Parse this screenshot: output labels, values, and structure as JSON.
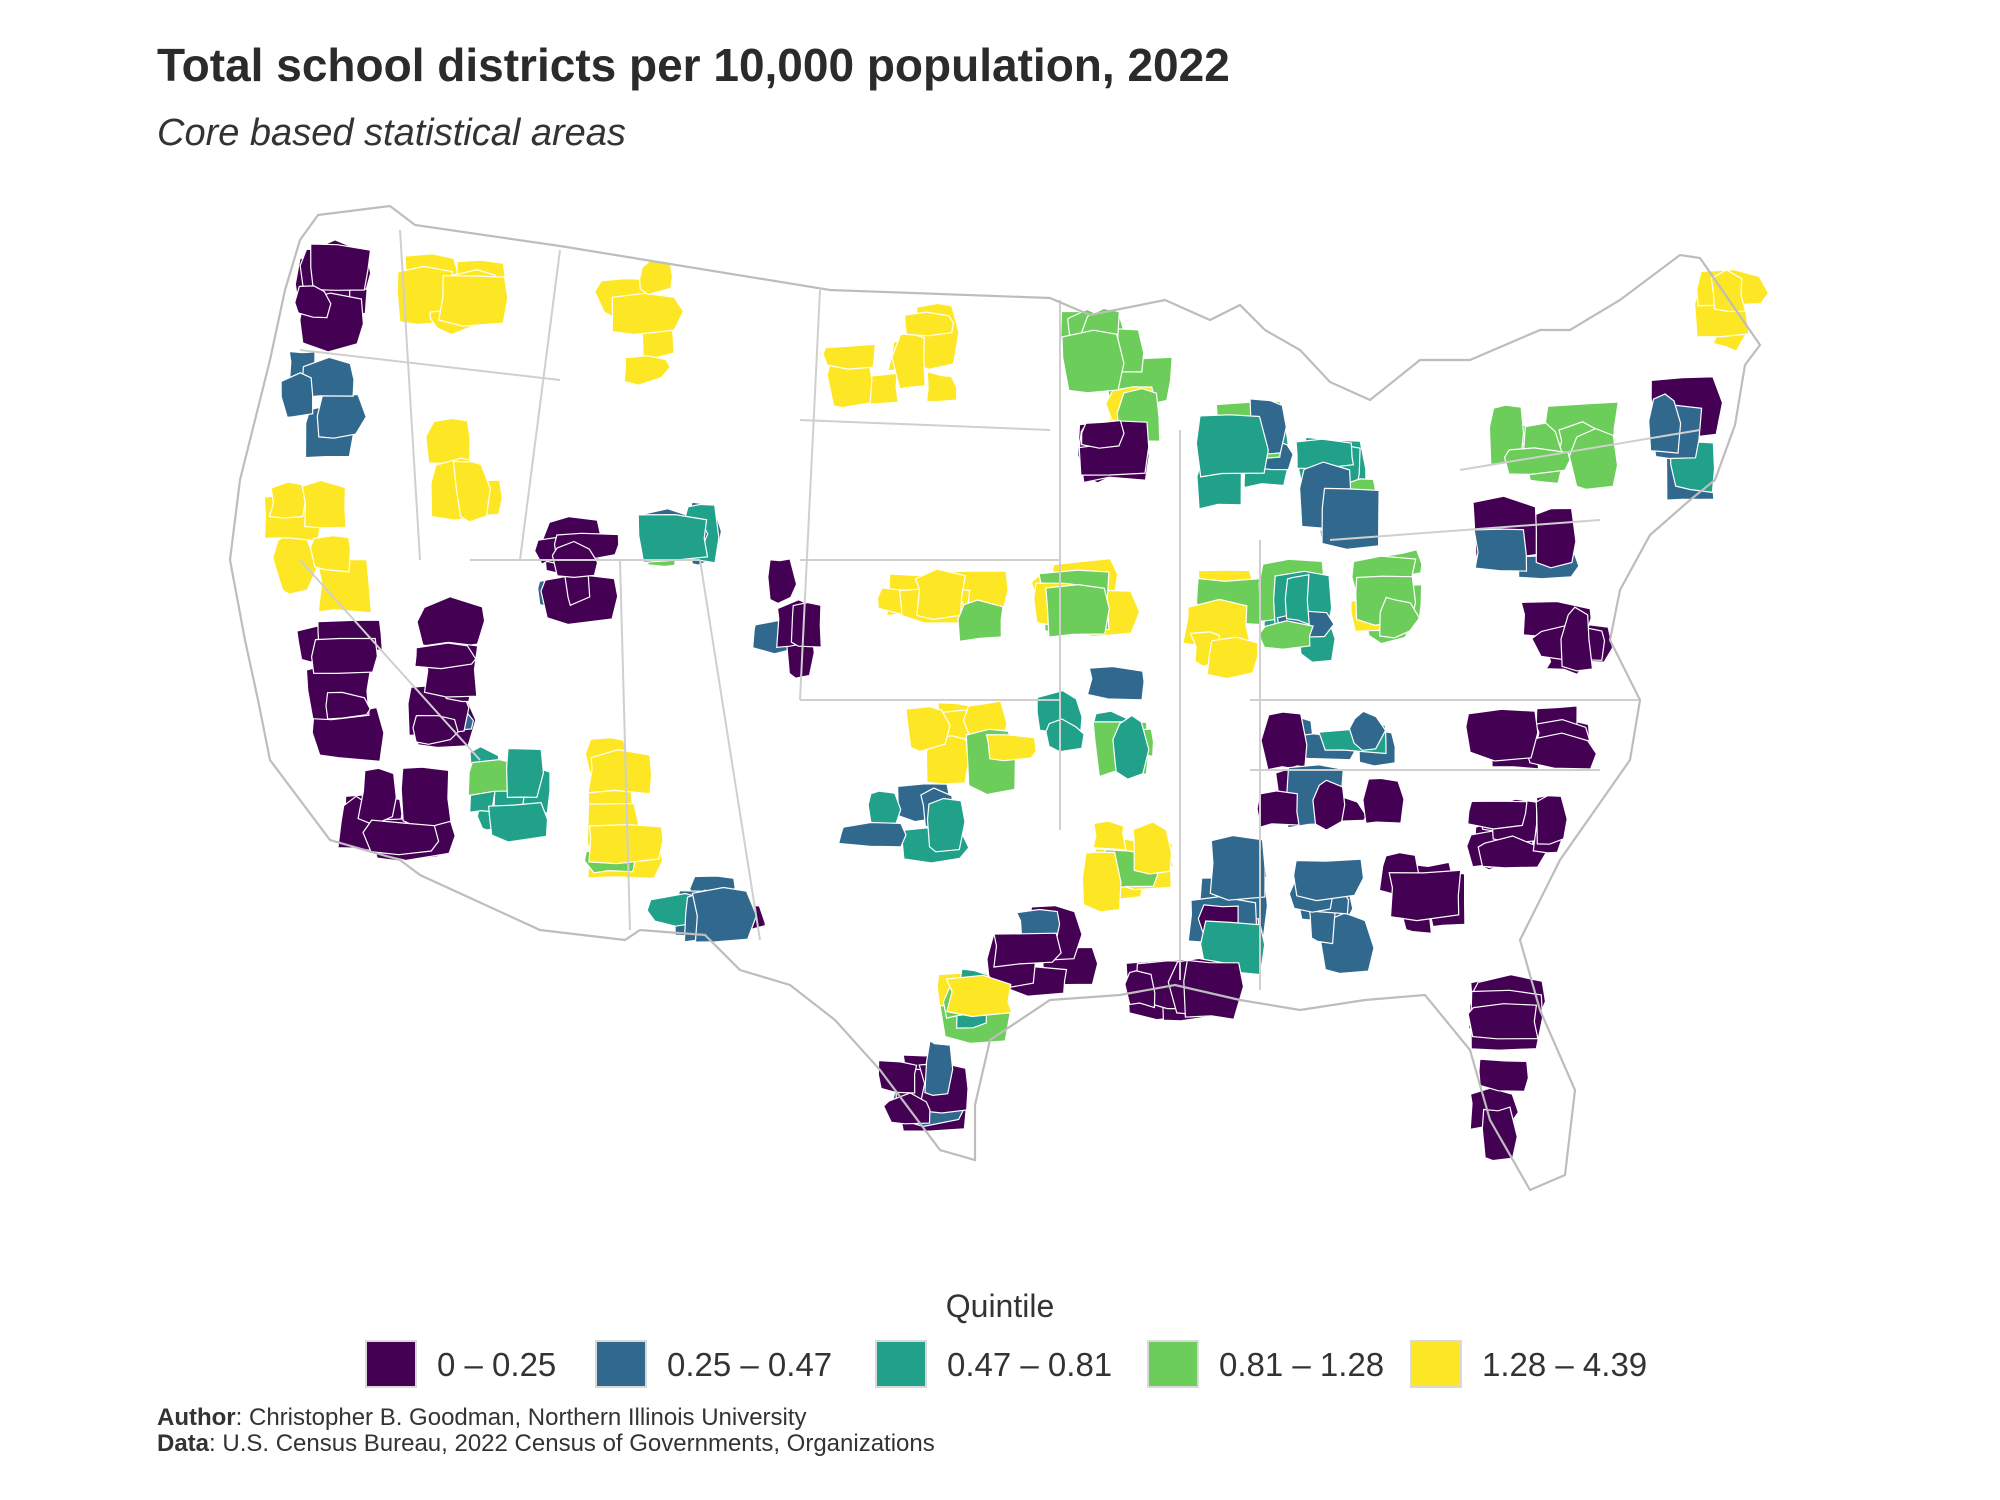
{
  "title": "Total school districts per 10,000 population, 2022",
  "subtitle": "Core based statistical areas",
  "legend": {
    "title": "Quintile",
    "items": [
      {
        "label": "0 – 0.25",
        "color": "#440154",
        "class": 1
      },
      {
        "label": "0.25 – 0.47",
        "color": "#31688e",
        "class": 2
      },
      {
        "label": "0.47 – 0.81",
        "color": "#21a08a",
        "class": 3
      },
      {
        "label": "0.81 – 1.28",
        "color": "#6ccd5a",
        "class": 4
      },
      {
        "label": "1.28 – 4.39",
        "color": "#fde725",
        "class": 5
      }
    ]
  },
  "credits": {
    "author_label": "Author",
    "author_text": ": Christopher B. Goodman, Northern Illinois University",
    "data_label": "Data",
    "data_text": ": U.S. Census Bureau, 2022 Census of Governments, Organizations"
  },
  "map": {
    "projection": "albers-usa",
    "unit": "Core based statistical areas",
    "regions": [
      {
        "area": "Pacific Northwest coast",
        "quintile": 1
      },
      {
        "area": "Western Oregon",
        "quintile": 2
      },
      {
        "area": "Eastern Washington",
        "quintile": 5
      },
      {
        "area": "Northern California",
        "quintile": 5
      },
      {
        "area": "Central California",
        "quintile": 1
      },
      {
        "area": "Southern California",
        "quintile": 1
      },
      {
        "area": "Nevada",
        "quintile": 1
      },
      {
        "area": "Utah",
        "quintile": 1
      },
      {
        "area": "Idaho",
        "quintile": 5
      },
      {
        "area": "Montana",
        "quintile": 5
      },
      {
        "area": "Wyoming",
        "quintile": 3
      },
      {
        "area": "Colorado",
        "quintile": 1
      },
      {
        "area": "Arizona",
        "quintile": 3
      },
      {
        "area": "New Mexico",
        "quintile": 5
      },
      {
        "area": "West Texas",
        "quintile": 2
      },
      {
        "area": "North Dakota",
        "quintile": 5
      },
      {
        "area": "Minnesota",
        "quintile": 4
      },
      {
        "area": "Minneapolis area",
        "quintile": 1
      },
      {
        "area": "Nebraska",
        "quintile": 5
      },
      {
        "area": "Kansas",
        "quintile": 5
      },
      {
        "area": "Oklahoma",
        "quintile": 3
      },
      {
        "area": "Iowa",
        "quintile": 5
      },
      {
        "area": "Missouri",
        "quintile": 3
      },
      {
        "area": "Wisconsin",
        "quintile": 3
      },
      {
        "area": "Michigan",
        "quintile": 3
      },
      {
        "area": "Illinois",
        "quintile": 5
      },
      {
        "area": "Indiana",
        "quintile": 3
      },
      {
        "area": "Ohio",
        "quintile": 4
      },
      {
        "area": "Pennsylvania",
        "quintile": 2
      },
      {
        "area": "New York",
        "quintile": 4
      },
      {
        "area": "New England",
        "quintile": 2
      },
      {
        "area": "Northern Maine",
        "quintile": 5
      },
      {
        "area": "Mid-Atlantic",
        "quintile": 1
      },
      {
        "area": "Kentucky",
        "quintile": 2
      },
      {
        "area": "Tennessee",
        "quintile": 1
      },
      {
        "area": "North Carolina",
        "quintile": 1
      },
      {
        "area": "South Carolina",
        "quintile": 1
      },
      {
        "area": "Georgia",
        "quintile": 1
      },
      {
        "area": "Alabama",
        "quintile": 2
      },
      {
        "area": "Mississippi",
        "quintile": 2
      },
      {
        "area": "Arkansas",
        "quintile": 5
      },
      {
        "area": "Louisiana",
        "quintile": 1
      },
      {
        "area": "East Texas",
        "quintile": 1
      },
      {
        "area": "Central Texas",
        "quintile": 4
      },
      {
        "area": "South Texas",
        "quintile": 1
      },
      {
        "area": "Florida",
        "quintile": 1
      }
    ]
  }
}
